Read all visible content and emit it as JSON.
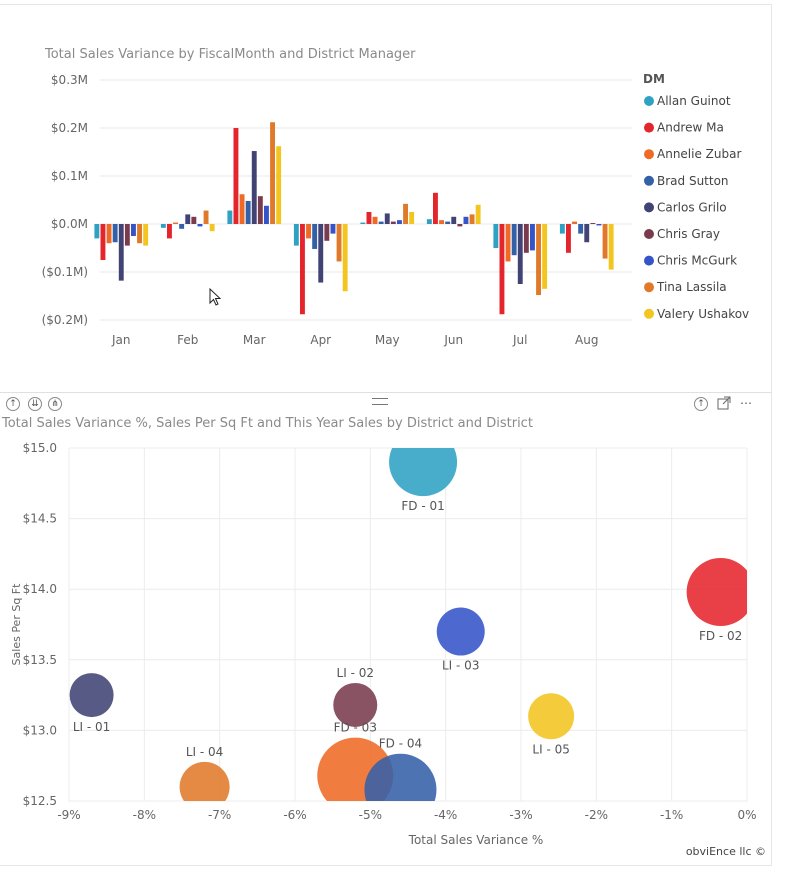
{
  "chart_data": [
    {
      "type": "bar",
      "title": "Total Sales Variance by FiscalMonth and District Manager",
      "xlabel": "",
      "ylabel": "",
      "ylim": [
        -0.2,
        0.3
      ],
      "y_ticks": [
        "$0.3M",
        "$0.2M",
        "$0.1M",
        "$0.0M",
        "($0.1M)",
        "($0.2M)"
      ],
      "y_tick_values": [
        0.3,
        0.2,
        0.1,
        0.0,
        -0.1,
        -0.2
      ],
      "categories": [
        "Jan",
        "Feb",
        "Mar",
        "Apr",
        "May",
        "Jun",
        "Jul",
        "Aug"
      ],
      "legend_title": "DM",
      "legend_position": "right",
      "series": [
        {
          "name": "Allan Guinot",
          "color": "#2FA2C4",
          "values": [
            -0.03,
            -0.008,
            0.028,
            -0.045,
            0.003,
            0.01,
            -0.05,
            -0.02
          ]
        },
        {
          "name": "Andrew Ma",
          "color": "#E5252C",
          "values": [
            -0.075,
            -0.03,
            0.2,
            -0.188,
            0.025,
            0.065,
            -0.188,
            -0.06
          ]
        },
        {
          "name": "Annelie Zubar",
          "color": "#EE6A26",
          "values": [
            -0.04,
            0.003,
            0.062,
            -0.03,
            0.015,
            0.008,
            -0.078,
            0.005
          ]
        },
        {
          "name": "Brad Sutton",
          "color": "#3460A8",
          "values": [
            -0.038,
            -0.01,
            0.048,
            -0.052,
            0.005,
            0.005,
            -0.065,
            -0.02
          ]
        },
        {
          "name": "Carlos Grilo",
          "color": "#414375",
          "values": [
            -0.118,
            0.02,
            0.152,
            -0.122,
            0.022,
            0.015,
            -0.125,
            -0.038
          ]
        },
        {
          "name": "Chris Gray",
          "color": "#7A3B4E",
          "values": [
            -0.045,
            0.015,
            0.058,
            -0.035,
            0.005,
            -0.005,
            -0.06,
            0.002
          ]
        },
        {
          "name": "Chris McGurk",
          "color": "#3454C8",
          "values": [
            -0.025,
            -0.005,
            0.038,
            -0.02,
            0.008,
            0.015,
            -0.055,
            -0.003
          ]
        },
        {
          "name": "Tina Lassila",
          "color": "#E07A2A",
          "values": [
            -0.04,
            0.028,
            0.212,
            -0.078,
            0.042,
            0.02,
            -0.148,
            -0.072
          ]
        },
        {
          "name": "Valery Ushakov",
          "color": "#F2C520",
          "values": [
            -0.045,
            -0.015,
            0.162,
            -0.14,
            0.025,
            0.04,
            -0.135,
            -0.095
          ]
        }
      ]
    },
    {
      "type": "scatter",
      "title": "Total Sales Variance %, Sales Per Sq Ft and This Year Sales by District and District",
      "xlabel": "Total Sales Variance %",
      "ylabel": "Sales Per Sq Ft",
      "xlim": [
        -9,
        0
      ],
      "ylim": [
        12.5,
        15.0
      ],
      "x_ticks": [
        "-9%",
        "-8%",
        "-7%",
        "-6%",
        "-5%",
        "-4%",
        "-3%",
        "-2%",
        "-1%",
        "0%"
      ],
      "x_tick_values": [
        -9,
        -8,
        -7,
        -6,
        -5,
        -4,
        -3,
        -2,
        -1,
        0
      ],
      "y_ticks": [
        "$15.0",
        "$14.5",
        "$14.0",
        "$13.5",
        "$13.0",
        "$12.5"
      ],
      "y_tick_values": [
        15.0,
        14.5,
        14.0,
        13.5,
        13.0,
        12.5
      ],
      "grid": true,
      "points": [
        {
          "label": "FD - 01",
          "x": -4.3,
          "y": 14.9,
          "size": 34,
          "color": "#2FA2C4",
          "label_pos": "below"
        },
        {
          "label": "FD - 02",
          "x": -0.35,
          "y": 13.98,
          "size": 34,
          "color": "#E5252C",
          "label_pos": "below"
        },
        {
          "label": "LI - 03",
          "x": -3.8,
          "y": 13.7,
          "size": 24,
          "color": "#3454C8",
          "label_pos": "below"
        },
        {
          "label": "LI - 01",
          "x": -8.7,
          "y": 13.25,
          "size": 22,
          "color": "#414375",
          "label_pos": "below"
        },
        {
          "label": "LI - 02",
          "x": -5.2,
          "y": 13.18,
          "size": 22,
          "color": "#7A3B4E",
          "label_pos": "above"
        },
        {
          "label": "LI - 05",
          "x": -2.6,
          "y": 13.1,
          "size": 23,
          "color": "#F2C520",
          "label_pos": "below"
        },
        {
          "label": "FD - 03",
          "x": -5.2,
          "y": 12.68,
          "size": 38,
          "color": "#EE6A26",
          "label_pos": "above"
        },
        {
          "label": "FD - 04",
          "x": -4.6,
          "y": 12.58,
          "size": 36,
          "color": "#3460A8",
          "label_pos": "above"
        },
        {
          "label": "LI - 04",
          "x": -7.2,
          "y": 12.6,
          "size": 25,
          "color": "#E07A2A",
          "label_pos": "above"
        }
      ]
    }
  ],
  "footer": {
    "credit": "obviEnce llc ©"
  },
  "header_icons": {
    "up": "↑",
    "drill": "⇊",
    "expand": "⋔",
    "menu": "⋯"
  }
}
